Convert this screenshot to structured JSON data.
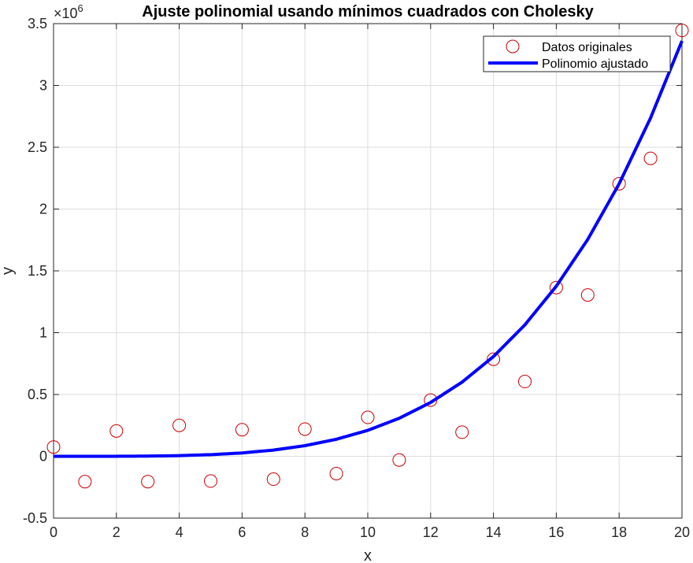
{
  "chart_data": {
    "type": "scatter",
    "title": "Ajuste polinomial usando mínimos cuadrados con Cholesky",
    "xlabel": "x",
    "ylabel": "y",
    "xlim": [
      0,
      20
    ],
    "ylim": [
      -500000,
      3500000
    ],
    "x_ticks": [
      0,
      2,
      4,
      6,
      8,
      10,
      12,
      14,
      16,
      18,
      20
    ],
    "x_tick_labels": [
      "0",
      "2",
      "4",
      "6",
      "8",
      "10",
      "12",
      "14",
      "16",
      "18",
      "20"
    ],
    "y_ticks": [
      -500000,
      0,
      500000,
      1000000,
      1500000,
      2000000,
      2500000,
      3000000,
      3500000
    ],
    "y_tick_labels": [
      "-0.5",
      "0",
      "0.5",
      "1",
      "1.5",
      "2",
      "2.5",
      "3",
      "3.5"
    ],
    "y_exponent_base": "×10",
    "y_exponent_power": "6",
    "grid": true,
    "legend_position": "top-right",
    "series": [
      {
        "name": "Datos originales",
        "kind": "markers",
        "marker": "circle",
        "color": "#cc0000",
        "x": [
          0,
          1,
          2,
          3,
          4,
          5,
          6,
          7,
          8,
          9,
          10,
          11,
          12,
          13,
          14,
          15,
          16,
          17,
          18,
          19,
          20
        ],
        "y": [
          75000,
          -205000,
          205000,
          -205000,
          250000,
          -200000,
          215000,
          -185000,
          220000,
          -140000,
          315000,
          -30000,
          455000,
          195000,
          785000,
          605000,
          1365000,
          1305000,
          2205000,
          2410000,
          3445000
        ]
      },
      {
        "name": "Polinomio ajustado",
        "kind": "line",
        "color": "#0000ff",
        "x": [
          0,
          1,
          2,
          3,
          4,
          5,
          6,
          7,
          8,
          9,
          10,
          11,
          12,
          13,
          14,
          15,
          16,
          17,
          18,
          19,
          20
        ],
        "y": [
          0,
          21,
          336,
          1701,
          5376,
          13125,
          27216,
          50421,
          86016,
          137781,
          210000,
          307461,
          435456,
          599781,
          806736,
          1063125,
          1376256,
          1753941,
          2204496,
          2736741,
          3360000
        ]
      }
    ]
  }
}
